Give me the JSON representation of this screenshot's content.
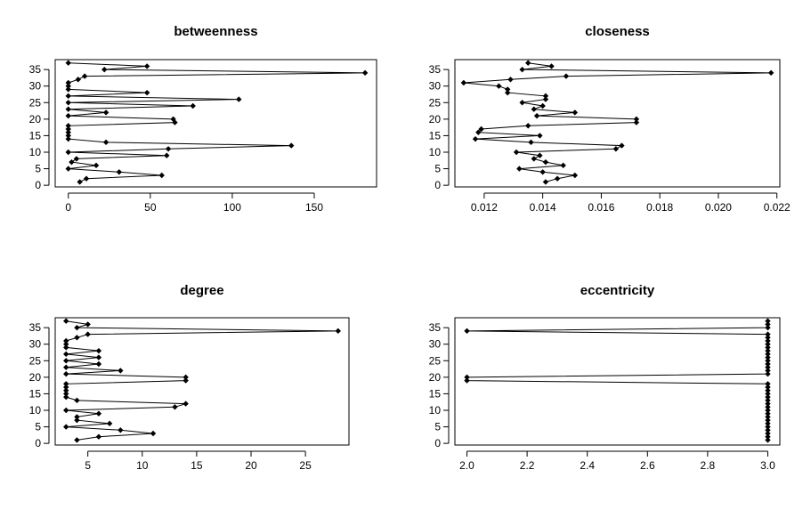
{
  "chart_data": [
    {
      "type": "line",
      "title": "betweenness",
      "xlabel": "",
      "ylabel": "",
      "xlim": [
        -8,
        188
      ],
      "ylim": [
        -0.5,
        38
      ],
      "xticks": [
        0,
        50,
        100,
        150
      ],
      "yticks": [
        0,
        5,
        10,
        15,
        20,
        25,
        30,
        35
      ],
      "y": [
        1,
        2,
        3,
        4,
        5,
        6,
        7,
        8,
        9,
        10,
        11,
        12,
        13,
        14,
        15,
        16,
        17,
        18,
        19,
        20,
        21,
        22,
        23,
        24,
        25,
        26,
        27,
        28,
        29,
        30,
        31,
        32,
        33,
        34,
        35,
        36,
        37
      ],
      "x": [
        7,
        11,
        57,
        31,
        0,
        17,
        2,
        5,
        60,
        0,
        61,
        136,
        23,
        0,
        0,
        0,
        0,
        0,
        65,
        64,
        0,
        23,
        0,
        76,
        0,
        104,
        0,
        48,
        0,
        0,
        0,
        6,
        10,
        181,
        22,
        48,
        0
      ]
    },
    {
      "type": "line",
      "title": "closeness",
      "xlabel": "",
      "ylabel": "",
      "xlim": [
        0.011,
        0.0221
      ],
      "ylim": [
        -0.5,
        38
      ],
      "xticks": [
        "0.012",
        "0.014",
        "0.016",
        "0.018",
        "0.020",
        "0.022"
      ],
      "yticks": [
        0,
        5,
        10,
        15,
        20,
        25,
        30,
        35
      ],
      "y": [
        1,
        2,
        3,
        4,
        5,
        6,
        7,
        8,
        9,
        10,
        11,
        12,
        13,
        14,
        15,
        16,
        17,
        18,
        19,
        20,
        21,
        22,
        23,
        24,
        25,
        26,
        27,
        28,
        29,
        30,
        31,
        32,
        33,
        34,
        35,
        36,
        37
      ],
      "x": [
        0.0141,
        0.0145,
        0.0151,
        0.014,
        0.0132,
        0.0147,
        0.0141,
        0.0137,
        0.0139,
        0.0131,
        0.0165,
        0.0167,
        0.0136,
        0.0117,
        0.0139,
        0.0118,
        0.0119,
        0.0135,
        0.0172,
        0.0172,
        0.0138,
        0.0151,
        0.0137,
        0.014,
        0.0133,
        0.0141,
        0.0141,
        0.0128,
        0.0128,
        0.0125,
        0.0113,
        0.0129,
        0.0148,
        0.0218,
        0.0133,
        0.0143,
        0.0135
      ]
    },
    {
      "type": "line",
      "title": "degree",
      "xlabel": "",
      "ylabel": "",
      "xlim": [
        2.0,
        29.0
      ],
      "ylim": [
        -0.5,
        38
      ],
      "xticks": [
        5,
        10,
        15,
        20,
        25
      ],
      "yticks": [
        0,
        5,
        10,
        15,
        20,
        25,
        30,
        35
      ],
      "y": [
        1,
        2,
        3,
        4,
        5,
        6,
        7,
        8,
        9,
        10,
        11,
        12,
        13,
        14,
        15,
        16,
        17,
        18,
        19,
        20,
        21,
        22,
        23,
        24,
        25,
        26,
        27,
        28,
        29,
        30,
        31,
        32,
        33,
        34,
        35,
        36,
        37
      ],
      "x": [
        4,
        6,
        11,
        8,
        3,
        7,
        4,
        4,
        6,
        3,
        13,
        14,
        4,
        3,
        3,
        3,
        3,
        3,
        14,
        14,
        3,
        8,
        3,
        6,
        3,
        6,
        3,
        6,
        3,
        3,
        3,
        4,
        5,
        28,
        4,
        5,
        3
      ]
    },
    {
      "type": "line",
      "title": "eccentricity",
      "xlabel": "",
      "ylabel": "",
      "xlim": [
        1.96,
        3.04
      ],
      "ylim": [
        -0.5,
        38
      ],
      "xticks": [
        "2.0",
        "2.2",
        "2.4",
        "2.6",
        "2.8",
        "3.0"
      ],
      "yticks": [
        0,
        5,
        10,
        15,
        20,
        25,
        30,
        35
      ],
      "y": [
        1,
        2,
        3,
        4,
        5,
        6,
        7,
        8,
        9,
        10,
        11,
        12,
        13,
        14,
        15,
        16,
        17,
        18,
        19,
        20,
        21,
        22,
        23,
        24,
        25,
        26,
        27,
        28,
        29,
        30,
        31,
        32,
        33,
        34,
        35,
        36,
        37
      ],
      "x": [
        3,
        3,
        3,
        3,
        3,
        3,
        3,
        3,
        3,
        3,
        3,
        3,
        3,
        3,
        3,
        3,
        3,
        3,
        2,
        2,
        3,
        3,
        3,
        3,
        3,
        3,
        3,
        3,
        3,
        3,
        3,
        3,
        3,
        2,
        3,
        3,
        3
      ]
    }
  ]
}
